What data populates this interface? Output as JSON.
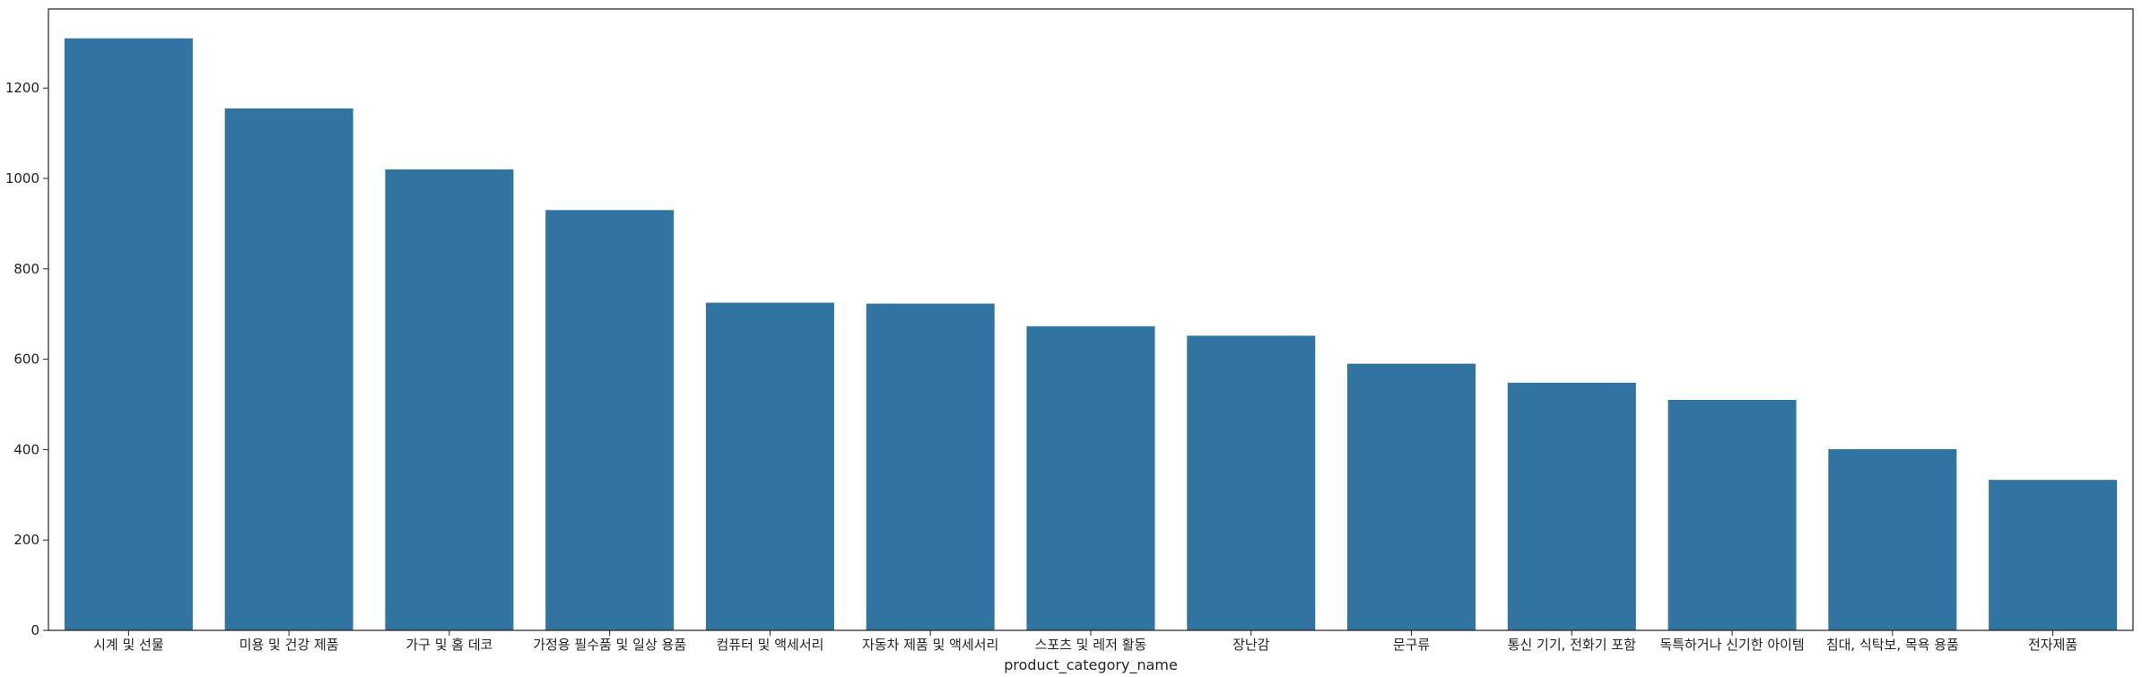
{
  "chart_data": {
    "type": "bar",
    "title": "",
    "xlabel": "product_category_name",
    "ylabel": "",
    "categories": [
      "시계 및 선물",
      "미용 및 건강 제품",
      "가구 및 홈 데코",
      "가정용 필수품 및 일상 용품",
      "컴퓨터 및 액세서리",
      "자동차 제품 및 액세서리",
      "스포츠 및 레저 활동",
      "장난감",
      "문구류",
      "통신 기기, 전화기 포함",
      "독특하거나 신기한 아이템",
      "침대, 식탁보, 목욕 용품",
      "전자제품"
    ],
    "values": [
      1310,
      1155,
      1020,
      930,
      725,
      723,
      673,
      652,
      590,
      548,
      510,
      401,
      333
    ],
    "ylim": [
      0,
      1375
    ],
    "yticks": [
      0,
      200,
      400,
      600,
      800,
      1000,
      1200
    ],
    "grid": false,
    "bar_color": "#3274a1",
    "axis_color": "#222222"
  }
}
